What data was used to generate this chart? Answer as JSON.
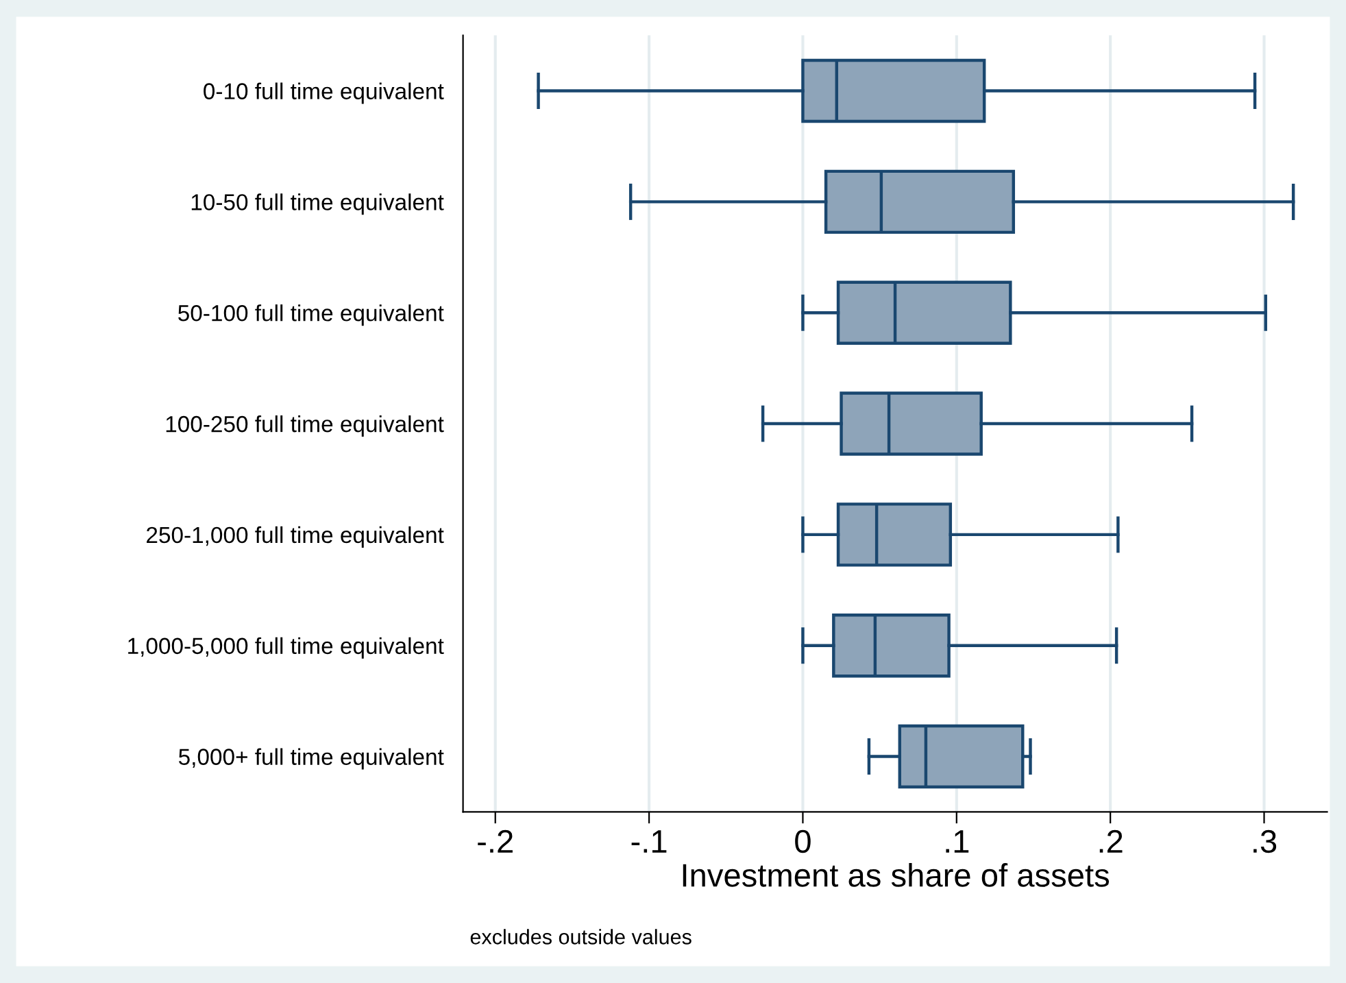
{
  "chart_data": {
    "type": "box",
    "orientation": "horizontal",
    "categories": [
      "0-10 full time equivalent",
      "10-50 full time equivalent",
      "50-100 full time equivalent",
      "100-250 full time equivalent",
      "250-1,000 full time equivalent",
      "1,000-5,000 full time equivalent",
      "5,000+ full time equivalent"
    ],
    "boxes": [
      {
        "low": -0.172,
        "q1": 0.0,
        "median": 0.022,
        "q3": 0.118,
        "high": 0.294
      },
      {
        "low": -0.112,
        "q1": 0.015,
        "median": 0.051,
        "q3": 0.137,
        "high": 0.319
      },
      {
        "low": 0.0,
        "q1": 0.023,
        "median": 0.06,
        "q3": 0.135,
        "high": 0.301
      },
      {
        "low": -0.026,
        "q1": 0.025,
        "median": 0.056,
        "q3": 0.116,
        "high": 0.253
      },
      {
        "low": 0.0,
        "q1": 0.023,
        "median": 0.048,
        "q3": 0.096,
        "high": 0.205
      },
      {
        "low": 0.0,
        "q1": 0.02,
        "median": 0.047,
        "q3": 0.095,
        "high": 0.204
      },
      {
        "low": 0.043,
        "q1": 0.063,
        "median": 0.08,
        "q3": 0.143,
        "high": 0.148
      }
    ],
    "color": "#8ea4b9",
    "xlabel": "Investment as share of assets",
    "xlim": [
      -0.221,
      0.341
    ],
    "xticks": [
      {
        "value": -0.2,
        "label": "-.2"
      },
      {
        "value": -0.1,
        "label": "-.1"
      },
      0,
      {
        "value": 0.1,
        "label": ".1"
      },
      {
        "value": 0.2,
        "label": ".2"
      },
      {
        "value": 0.3,
        "label": ".3"
      }
    ],
    "grid": "x",
    "annotations": [
      "excludes outside values"
    ]
  }
}
